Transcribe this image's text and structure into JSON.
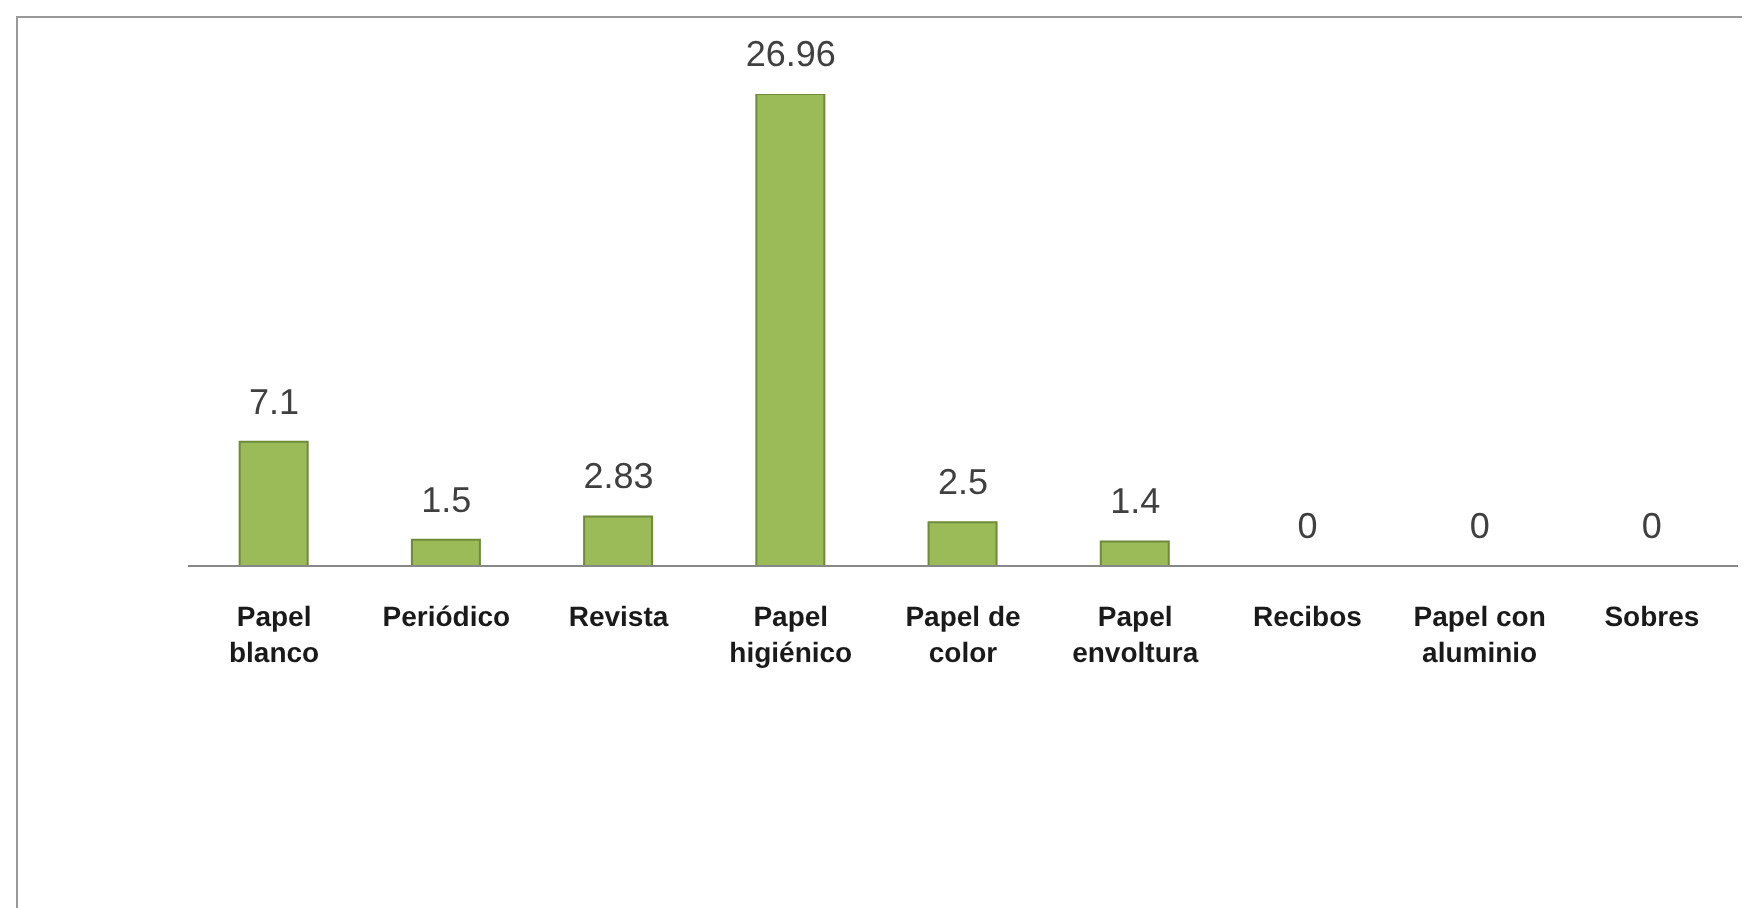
{
  "chart_data": {
    "type": "bar",
    "categories": [
      "Papel blanco",
      "Periódico",
      "Revista",
      "Papel higiénico",
      "Papel de color",
      "Papel envoltura",
      "Recibos",
      "Papel con aluminio",
      "Sobres"
    ],
    "values": [
      7.1,
      1.5,
      2.83,
      26.96,
      2.5,
      1.4,
      0,
      0,
      0
    ],
    "color": "#9bbb59",
    "data_labels": true,
    "grid": false,
    "legend": false
  }
}
